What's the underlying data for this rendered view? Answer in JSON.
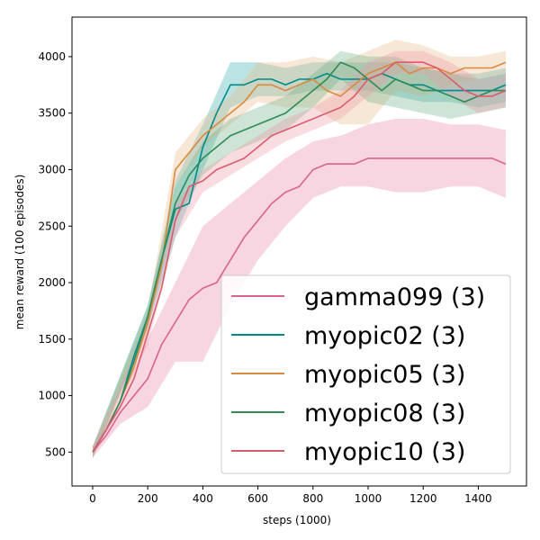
{
  "chart_data": {
    "type": "line",
    "title": "",
    "xlabel": "steps (1000)",
    "ylabel": "mean reward (100 episodes)",
    "xlim": [
      -75,
      1575
    ],
    "ylim": [
      200,
      4350
    ],
    "xticks": [
      0,
      200,
      400,
      600,
      800,
      1000,
      1200,
      1400
    ],
    "yticks": [
      500,
      1000,
      1500,
      2000,
      2500,
      3000,
      3500,
      4000
    ],
    "grid": false,
    "legend_position": "lower right",
    "series": [
      {
        "name": "gamma099 (3)",
        "color": "#d9638e",
        "fill_color": "#e88aaa",
        "points": [
          [
            0,
            500
          ],
          [
            50,
            650
          ],
          [
            100,
            850
          ],
          [
            150,
            1000
          ],
          [
            200,
            1150
          ],
          [
            250,
            1450
          ],
          [
            300,
            1650
          ],
          [
            350,
            1850
          ],
          [
            400,
            1950
          ],
          [
            450,
            2000
          ],
          [
            500,
            2200
          ],
          [
            550,
            2400
          ],
          [
            600,
            2550
          ],
          [
            650,
            2700
          ],
          [
            700,
            2800
          ],
          [
            750,
            2850
          ],
          [
            800,
            3000
          ],
          [
            850,
            3050
          ],
          [
            900,
            3050
          ],
          [
            950,
            3050
          ],
          [
            1000,
            3100
          ],
          [
            1050,
            3100
          ],
          [
            1100,
            3100
          ],
          [
            1150,
            3100
          ],
          [
            1200,
            3100
          ],
          [
            1250,
            3100
          ],
          [
            1300,
            3100
          ],
          [
            1350,
            3100
          ],
          [
            1400,
            3100
          ],
          [
            1450,
            3100
          ],
          [
            1500,
            3050
          ]
        ],
        "band": [
          [
            0,
            450,
            550
          ],
          [
            100,
            750,
            950
          ],
          [
            200,
            900,
            1500
          ],
          [
            300,
            1300,
            2000
          ],
          [
            400,
            1300,
            2500
          ],
          [
            500,
            1800,
            2700
          ],
          [
            600,
            2200,
            2900
          ],
          [
            700,
            2500,
            3100
          ],
          [
            800,
            2750,
            3250
          ],
          [
            900,
            2850,
            3300
          ],
          [
            1000,
            2850,
            3400
          ],
          [
            1100,
            2800,
            3450
          ],
          [
            1200,
            2800,
            3450
          ],
          [
            1300,
            2850,
            3400
          ],
          [
            1400,
            2850,
            3400
          ],
          [
            1500,
            2750,
            3350
          ]
        ]
      },
      {
        "name": "myopic02 (3)",
        "color": "#008b8b",
        "fill_color": "#3fb0ae",
        "points": [
          [
            0,
            500
          ],
          [
            50,
            700
          ],
          [
            100,
            950
          ],
          [
            150,
            1350
          ],
          [
            200,
            1700
          ],
          [
            250,
            2200
          ],
          [
            300,
            2650
          ],
          [
            350,
            2700
          ],
          [
            400,
            3200
          ],
          [
            450,
            3500
          ],
          [
            500,
            3750
          ],
          [
            550,
            3750
          ],
          [
            600,
            3800
          ],
          [
            650,
            3800
          ],
          [
            700,
            3750
          ],
          [
            750,
            3800
          ],
          [
            800,
            3800
          ],
          [
            850,
            3850
          ],
          [
            900,
            3800
          ],
          [
            950,
            3800
          ],
          [
            1000,
            3800
          ],
          [
            1050,
            3850
          ],
          [
            1100,
            3800
          ],
          [
            1150,
            3750
          ],
          [
            1200,
            3750
          ],
          [
            1250,
            3700
          ],
          [
            1300,
            3700
          ],
          [
            1350,
            3700
          ],
          [
            1400,
            3700
          ],
          [
            1450,
            3700
          ],
          [
            1500,
            3750
          ]
        ],
        "band": [
          [
            0,
            450,
            550
          ],
          [
            200,
            1600,
            1800
          ],
          [
            300,
            2400,
            2900
          ],
          [
            400,
            3000,
            3400
          ],
          [
            500,
            3550,
            3950
          ],
          [
            600,
            3650,
            3950
          ],
          [
            700,
            3650,
            3900
          ],
          [
            800,
            3700,
            3950
          ],
          [
            900,
            3700,
            3950
          ],
          [
            1000,
            3700,
            3950
          ],
          [
            1100,
            3650,
            3950
          ],
          [
            1200,
            3600,
            3900
          ],
          [
            1300,
            3600,
            3850
          ],
          [
            1400,
            3550,
            3850
          ],
          [
            1500,
            3600,
            3900
          ]
        ]
      },
      {
        "name": "myopic05 (3)",
        "color": "#d98a3f",
        "fill_color": "#e9b98a",
        "points": [
          [
            0,
            500
          ],
          [
            50,
            700
          ],
          [
            100,
            950
          ],
          [
            150,
            1250
          ],
          [
            200,
            1650
          ],
          [
            250,
            2150
          ],
          [
            300,
            3000
          ],
          [
            350,
            3150
          ],
          [
            400,
            3300
          ],
          [
            450,
            3400
          ],
          [
            500,
            3500
          ],
          [
            550,
            3600
          ],
          [
            600,
            3750
          ],
          [
            650,
            3750
          ],
          [
            700,
            3700
          ],
          [
            750,
            3750
          ],
          [
            800,
            3800
          ],
          [
            850,
            3700
          ],
          [
            900,
            3650
          ],
          [
            950,
            3750
          ],
          [
            1000,
            3850
          ],
          [
            1050,
            3900
          ],
          [
            1100,
            3950
          ],
          [
            1150,
            3850
          ],
          [
            1200,
            3900
          ],
          [
            1250,
            3900
          ],
          [
            1300,
            3850
          ],
          [
            1350,
            3900
          ],
          [
            1400,
            3900
          ],
          [
            1450,
            3900
          ],
          [
            1500,
            3950
          ]
        ],
        "band": [
          [
            0,
            450,
            550
          ],
          [
            200,
            1550,
            1750
          ],
          [
            300,
            2850,
            3150
          ],
          [
            400,
            3200,
            3450
          ],
          [
            500,
            3400,
            3650
          ],
          [
            600,
            3600,
            3950
          ],
          [
            700,
            3550,
            3950
          ],
          [
            800,
            3550,
            4000
          ],
          [
            900,
            3400,
            3950
          ],
          [
            1000,
            3400,
            4050
          ],
          [
            1100,
            3700,
            4150
          ],
          [
            1200,
            3650,
            4100
          ],
          [
            1300,
            3750,
            4000
          ],
          [
            1400,
            3800,
            4000
          ],
          [
            1500,
            3850,
            4050
          ]
        ]
      },
      {
        "name": "myopic08 (3)",
        "color": "#2e8b57",
        "fill_color": "#6fb38a",
        "points": [
          [
            0,
            500
          ],
          [
            50,
            700
          ],
          [
            100,
            950
          ],
          [
            150,
            1300
          ],
          [
            200,
            1700
          ],
          [
            250,
            2200
          ],
          [
            300,
            2700
          ],
          [
            350,
            2950
          ],
          [
            400,
            3100
          ],
          [
            450,
            3200
          ],
          [
            500,
            3300
          ],
          [
            550,
            3350
          ],
          [
            600,
            3400
          ],
          [
            650,
            3450
          ],
          [
            700,
            3500
          ],
          [
            750,
            3600
          ],
          [
            800,
            3700
          ],
          [
            850,
            3800
          ],
          [
            900,
            3950
          ],
          [
            950,
            3900
          ],
          [
            1000,
            3800
          ],
          [
            1050,
            3700
          ],
          [
            1100,
            3800
          ],
          [
            1150,
            3750
          ],
          [
            1200,
            3700
          ],
          [
            1250,
            3700
          ],
          [
            1300,
            3650
          ],
          [
            1350,
            3600
          ],
          [
            1400,
            3650
          ],
          [
            1450,
            3700
          ],
          [
            1500,
            3700
          ]
        ],
        "band": [
          [
            0,
            450,
            550
          ],
          [
            200,
            1600,
            1800
          ],
          [
            300,
            2550,
            2850
          ],
          [
            400,
            2950,
            3250
          ],
          [
            500,
            3150,
            3450
          ],
          [
            600,
            3250,
            3550
          ],
          [
            700,
            3350,
            3650
          ],
          [
            800,
            3550,
            3850
          ],
          [
            900,
            3800,
            4050
          ],
          [
            1000,
            3600,
            4000
          ],
          [
            1100,
            3550,
            4000
          ],
          [
            1200,
            3500,
            3900
          ],
          [
            1300,
            3450,
            3850
          ],
          [
            1400,
            3500,
            3800
          ],
          [
            1500,
            3550,
            3850
          ]
        ]
      },
      {
        "name": "myopic10 (3)",
        "color": "#d95c6e",
        "fill_color": "#ea9aa5",
        "points": [
          [
            0,
            500
          ],
          [
            50,
            700
          ],
          [
            100,
            900
          ],
          [
            150,
            1150
          ],
          [
            200,
            1550
          ],
          [
            250,
            1950
          ],
          [
            300,
            2550
          ],
          [
            350,
            2850
          ],
          [
            400,
            2900
          ],
          [
            450,
            3000
          ],
          [
            500,
            3050
          ],
          [
            550,
            3100
          ],
          [
            600,
            3200
          ],
          [
            650,
            3300
          ],
          [
            700,
            3350
          ],
          [
            750,
            3400
          ],
          [
            800,
            3450
          ],
          [
            850,
            3500
          ],
          [
            900,
            3550
          ],
          [
            950,
            3650
          ],
          [
            1000,
            3800
          ],
          [
            1050,
            3850
          ],
          [
            1100,
            3950
          ],
          [
            1150,
            3950
          ],
          [
            1200,
            3950
          ],
          [
            1250,
            3900
          ],
          [
            1300,
            3800
          ],
          [
            1350,
            3700
          ],
          [
            1400,
            3650
          ],
          [
            1450,
            3650
          ],
          [
            1500,
            3700
          ]
        ],
        "band": [
          [
            0,
            450,
            550
          ],
          [
            200,
            1450,
            1650
          ],
          [
            300,
            2400,
            2700
          ],
          [
            400,
            2800,
            3000
          ],
          [
            500,
            2950,
            3150
          ],
          [
            600,
            3100,
            3300
          ],
          [
            700,
            3250,
            3450
          ],
          [
            800,
            3350,
            3550
          ],
          [
            900,
            3450,
            3700
          ],
          [
            1000,
            3650,
            3950
          ],
          [
            1100,
            3850,
            4050
          ],
          [
            1200,
            3850,
            4050
          ],
          [
            1300,
            3650,
            3950
          ],
          [
            1400,
            3500,
            3800
          ],
          [
            1500,
            3550,
            3850
          ]
        ]
      }
    ]
  }
}
